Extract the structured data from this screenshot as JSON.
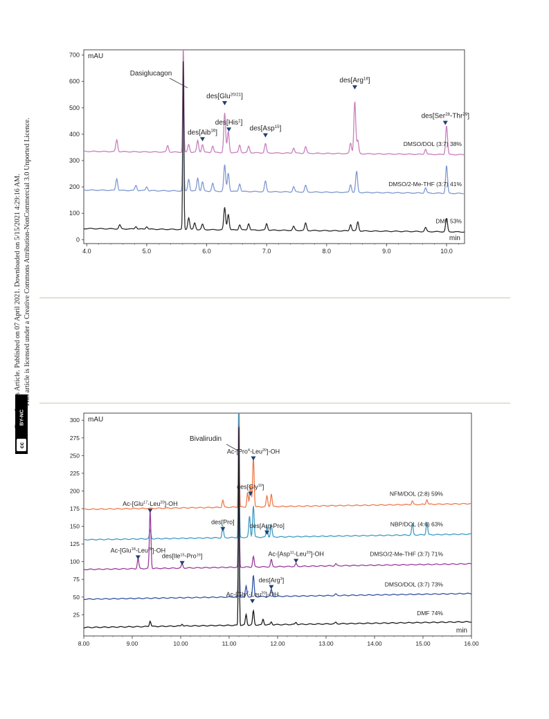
{
  "sidebar": {
    "line1": "Open Access Article. Published on 07 April 2021. Downloaded on 5/15/2021 4:29:16 AM.",
    "line2": "This article is licensed under a Creative Commons Attribution-NonCommercial 3.0 Unported Licence.",
    "badge_cc": "cc",
    "badge_text": "BY-NC"
  },
  "chart_data": [
    {
      "type": "line",
      "ylabel": "mAU",
      "xlabel": "min",
      "xlim": [
        3.95,
        10.3
      ],
      "ylim": [
        -15,
        720
      ],
      "xticks": [
        "4.0",
        "5.0",
        "6.0",
        "7.0",
        "8.0",
        "9.0",
        "10.0"
      ],
      "xtick_values": [
        4,
        5,
        6,
        7,
        8,
        9,
        10
      ],
      "yticks": [
        "0",
        "100",
        "200",
        "300",
        "400",
        "500",
        "600",
        "700"
      ],
      "ytick_values": [
        0,
        100,
        200,
        300,
        400,
        500,
        600,
        700
      ],
      "peak_label": "Dasiglucagon",
      "series": [
        {
          "label": "DMSO/DOL (3:7) 38%",
          "color": "#c77fbd",
          "baseline": 335,
          "slope": -2,
          "peaks": [
            [
              4.5,
              45
            ],
            [
              5.35,
              25
            ],
            [
              5.61,
              420
            ],
            [
              5.7,
              30
            ],
            [
              5.85,
              45
            ],
            [
              5.93,
              30
            ],
            [
              6.1,
              25
            ],
            [
              6.3,
              150
            ],
            [
              6.36,
              80
            ],
            [
              6.55,
              30
            ],
            [
              6.7,
              25
            ],
            [
              6.98,
              35
            ],
            [
              7.45,
              20
            ],
            [
              7.65,
              25
            ],
            [
              8.4,
              40
            ],
            [
              8.47,
              200
            ],
            [
              8.52,
              50
            ],
            [
              9.65,
              20
            ],
            [
              10.0,
              110
            ]
          ]
        },
        {
          "label": "DMSO/2-Me-THF (3:7) 41%",
          "color": "#7f98cf",
          "baseline": 188,
          "slope": -2,
          "peaks": [
            [
              4.5,
              45
            ],
            [
              4.82,
              20
            ],
            [
              5.0,
              15
            ],
            [
              5.61,
              420
            ],
            [
              5.7,
              45
            ],
            [
              5.85,
              50
            ],
            [
              5.93,
              35
            ],
            [
              6.1,
              30
            ],
            [
              6.3,
              100
            ],
            [
              6.36,
              70
            ],
            [
              6.55,
              30
            ],
            [
              6.98,
              40
            ],
            [
              7.45,
              20
            ],
            [
              7.65,
              25
            ],
            [
              8.4,
              30
            ],
            [
              8.5,
              80
            ],
            [
              9.65,
              20
            ],
            [
              10.0,
              105
            ]
          ]
        },
        {
          "label": "DMF 53%",
          "color": "#2a2a2a",
          "baseline": 42,
          "slope": -2,
          "peaks": [
            [
              4.55,
              15
            ],
            [
              4.82,
              10
            ],
            [
              5.0,
              10
            ],
            [
              5.61,
              650
            ],
            [
              5.7,
              45
            ],
            [
              5.8,
              25
            ],
            [
              5.93,
              20
            ],
            [
              6.3,
              85
            ],
            [
              6.36,
              60
            ],
            [
              6.55,
              20
            ],
            [
              6.7,
              25
            ],
            [
              7.0,
              25
            ],
            [
              7.45,
              15
            ],
            [
              7.65,
              28
            ],
            [
              8.4,
              25
            ],
            [
              8.52,
              35
            ],
            [
              9.65,
              15
            ],
            [
              10.0,
              50
            ]
          ]
        }
      ],
      "annotations": [
        {
          "text": "des[Aib",
          "sup": "16",
          "end": "]",
          "x": 5.93,
          "y": 378
        },
        {
          "text": "des[Glu",
          "sup": "20/21",
          "end": "]",
          "x": 6.3,
          "y": 515
        },
        {
          "text": "des[His",
          "sup": "1",
          "end": "]",
          "x": 6.37,
          "y": 415
        },
        {
          "text": "des[Asp",
          "sup": "15",
          "end": "]",
          "x": 6.98,
          "y": 393
        },
        {
          "text": "des[Arg",
          "sup": "18",
          "end": "]",
          "x": 8.47,
          "y": 575
        },
        {
          "text": "des[Ser",
          "sup": "28",
          "mid": "-Thr",
          "sup2": "29",
          "end": "]",
          "x": 9.98,
          "y": 440
        }
      ]
    },
    {
      "type": "line",
      "ylabel": "mAU",
      "xlabel": "min",
      "xlim": [
        8.0,
        16.0
      ],
      "ylim": [
        -5,
        310
      ],
      "xticks": [
        "8.00",
        "9.00",
        "10.00",
        "11.00",
        "12.00",
        "13.00",
        "14.00",
        "15.00",
        "16.00"
      ],
      "xtick_values": [
        8,
        9,
        10,
        11,
        12,
        13,
        14,
        15,
        16
      ],
      "yticks": [
        "25",
        "50",
        "75",
        "100",
        "125",
        "150",
        "175",
        "200",
        "225",
        "250",
        "275",
        "300"
      ],
      "ytick_values": [
        25,
        50,
        75,
        100,
        125,
        150,
        175,
        200,
        225,
        250,
        275,
        300
      ],
      "peak_label": "Bivalirudin",
      "series": [
        {
          "label": "NFM/DOL (2:8)  59%",
          "color": "#ee7a4a",
          "baseline": 174,
          "slope": 1,
          "peaks": [
            [
              10.87,
              10
            ],
            [
              11.2,
              200
            ],
            [
              11.38,
              20
            ],
            [
              11.44,
              30
            ],
            [
              11.5,
              70
            ],
            [
              11.78,
              15
            ],
            [
              11.87,
              18
            ],
            [
              14.78,
              5
            ],
            [
              15.08,
              7
            ]
          ]
        },
        {
          "label": "NBP/DOL (4:6) 63%",
          "color": "#3d9bc4",
          "baseline": 131,
          "slope": 1,
          "peaks": [
            [
              9.37,
              12
            ],
            [
              10.87,
              15
            ],
            [
              11.2,
              200
            ],
            [
              11.42,
              30
            ],
            [
              11.5,
              45
            ],
            [
              11.78,
              15
            ],
            [
              11.87,
              18
            ],
            [
              14.78,
              15
            ],
            [
              15.08,
              18
            ]
          ]
        },
        {
          "label": "DMSO/2-Me-THF (3:7)  71%",
          "color": "#9b3a9b",
          "baseline": 89,
          "slope": 1,
          "peaks": [
            [
              9.12,
              15
            ],
            [
              9.37,
              83
            ],
            [
              10.03,
              6
            ],
            [
              11.2,
              200
            ],
            [
              11.5,
              15
            ],
            [
              11.87,
              10
            ],
            [
              12.38,
              4
            ],
            [
              13.2,
              3
            ]
          ]
        },
        {
          "label": "DMSO/DOL (3:7)  73%",
          "color": "#3352a3",
          "baseline": 47,
          "slope": 1,
          "peaks": [
            [
              11.2,
              200
            ],
            [
              11.35,
              15
            ],
            [
              11.5,
              30
            ],
            [
              11.87,
              10
            ],
            [
              13.2,
              2
            ]
          ]
        },
        {
          "label": "DMF  74%",
          "color": "#1a1a1a",
          "baseline": 7,
          "slope": 1,
          "peaks": [
            [
              9.37,
              8
            ],
            [
              10.03,
              3
            ],
            [
              11.2,
              280
            ],
            [
              11.35,
              15
            ],
            [
              11.5,
              20
            ],
            [
              11.7,
              8
            ],
            [
              11.87,
              4
            ],
            [
              12.38,
              3
            ],
            [
              13.2,
              2
            ]
          ]
        }
      ],
      "annotations": [
        {
          "text": "Ac-[Pro",
          "sup": "4",
          "mid": "-Leu",
          "sup2": "20",
          "end": "]-OH",
          "x": 11.5,
          "y": 245
        },
        {
          "text": "des[Gly",
          "sup": "10",
          "end": "]",
          "x": 11.44,
          "y": 195
        },
        {
          "text": "Ac-[Glu",
          "sup": "17",
          "mid": "-Leu",
          "sup2": "20",
          "end": "]-OH",
          "x": 9.37,
          "y": 171
        },
        {
          "text": "des[Pro]",
          "x": 10.87,
          "y": 145
        },
        {
          "text": "des[Arg-Pro]",
          "x": 11.78,
          "y": 140
        },
        {
          "text": "Ac-[Glu",
          "sup": "18",
          "mid": "-Leu",
          "sup2": "20",
          "end": "]-OH",
          "x": 9.12,
          "y": 105
        },
        {
          "text": "des[Ile",
          "sup": "15",
          "mid": "-Pro",
          "sup2": "16",
          "end": "]",
          "x": 10.03,
          "y": 97
        },
        {
          "text": "Ac-[Asp",
          "sup": "11",
          "mid": "-Leu",
          "sup2": "20",
          "end": "]-OH",
          "x": 12.38,
          "y": 100
        },
        {
          "text": "des[Arg",
          "sup": "3",
          "end": "]",
          "x": 11.87,
          "y": 63
        },
        {
          "text": "Ac-[Gly",
          "sup": "7",
          "mid": "-Leu",
          "sup2": "20",
          "end": "]-OH",
          "x": 11.48,
          "y": 43
        }
      ]
    }
  ]
}
